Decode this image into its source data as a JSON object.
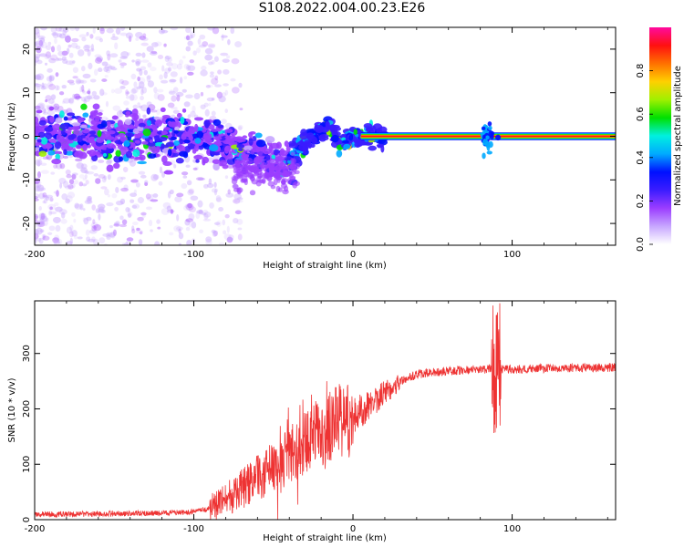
{
  "title": "S108.2022.004.00.23.E26",
  "chart_data": [
    {
      "type": "heatmap",
      "xlabel": "Height of straight line (km)",
      "ylabel": "Frequency (Hz)",
      "xlim": [
        -200,
        165
      ],
      "ylim": [
        -25,
        25
      ],
      "xticks": [
        -200,
        -100,
        0,
        100
      ],
      "yticks": [
        20,
        10,
        0,
        -10,
        -20
      ],
      "colorbar": {
        "label": "Normalized spectral amplitude",
        "range": [
          0,
          1
        ],
        "ticks": [
          0.0,
          0.2,
          0.4,
          0.6,
          0.8
        ],
        "colors": [
          "#ffffff",
          "#c7a6ff",
          "#9b3dff",
          "#3b1cff",
          "#0010ff",
          "#00aaff",
          "#00f0e0",
          "#00e000",
          "#a0f000",
          "#ffd000",
          "#ff7000",
          "#ff1010",
          "#ff0a9e"
        ]
      },
      "ridge": {
        "description_points": [
          {
            "x": -200,
            "y": 0.5
          },
          {
            "x": -150,
            "y": 0
          },
          {
            "x": -100,
            "y": -0.5
          },
          {
            "x": -80,
            "y": -2
          },
          {
            "x": -60,
            "y": -4
          },
          {
            "x": -45,
            "y": -7
          },
          {
            "x": -38,
            "y": -5
          },
          {
            "x": -30,
            "y": -1
          },
          {
            "x": -20,
            "y": 1
          },
          {
            "x": -15,
            "y": 2.5
          },
          {
            "x": -10,
            "y": -1
          },
          {
            "x": -5,
            "y": -1.5
          },
          {
            "x": 0,
            "y": -0.5
          },
          {
            "x": 10,
            "y": 0
          },
          {
            "x": 165,
            "y": 0
          }
        ],
        "steady_tone_from_x": 5,
        "steady_tone_frequency": 0,
        "disturbance_x": 85
      }
    },
    {
      "type": "line",
      "xlabel": "Height of straight line (km)",
      "ylabel": "SNR (10 * v/v)",
      "xlim": [
        -200,
        165
      ],
      "ylim": [
        0,
        395
      ],
      "xticks": [
        -200,
        -100,
        0,
        100
      ],
      "yticks": [
        0,
        100,
        200,
        300
      ],
      "color": "#ee3333",
      "series": [
        {
          "x": [
            -200,
            -180,
            -160,
            -140,
            -120,
            -100,
            -90,
            -80,
            -70,
            -60,
            -50,
            -40,
            -30,
            -20,
            -10,
            0,
            10,
            20,
            30,
            40,
            50,
            60,
            70,
            80,
            85,
            90,
            95,
            100,
            110,
            120,
            130,
            140,
            150,
            160,
            165
          ],
          "values": [
            10,
            10,
            10,
            11,
            12,
            14,
            20,
            35,
            55,
            75,
            95,
            115,
            140,
            160,
            175,
            185,
            205,
            230,
            250,
            262,
            266,
            268,
            270,
            271,
            272,
            270,
            272,
            272,
            272,
            273,
            273,
            274,
            274,
            275,
            275
          ]
        }
      ]
    }
  ]
}
